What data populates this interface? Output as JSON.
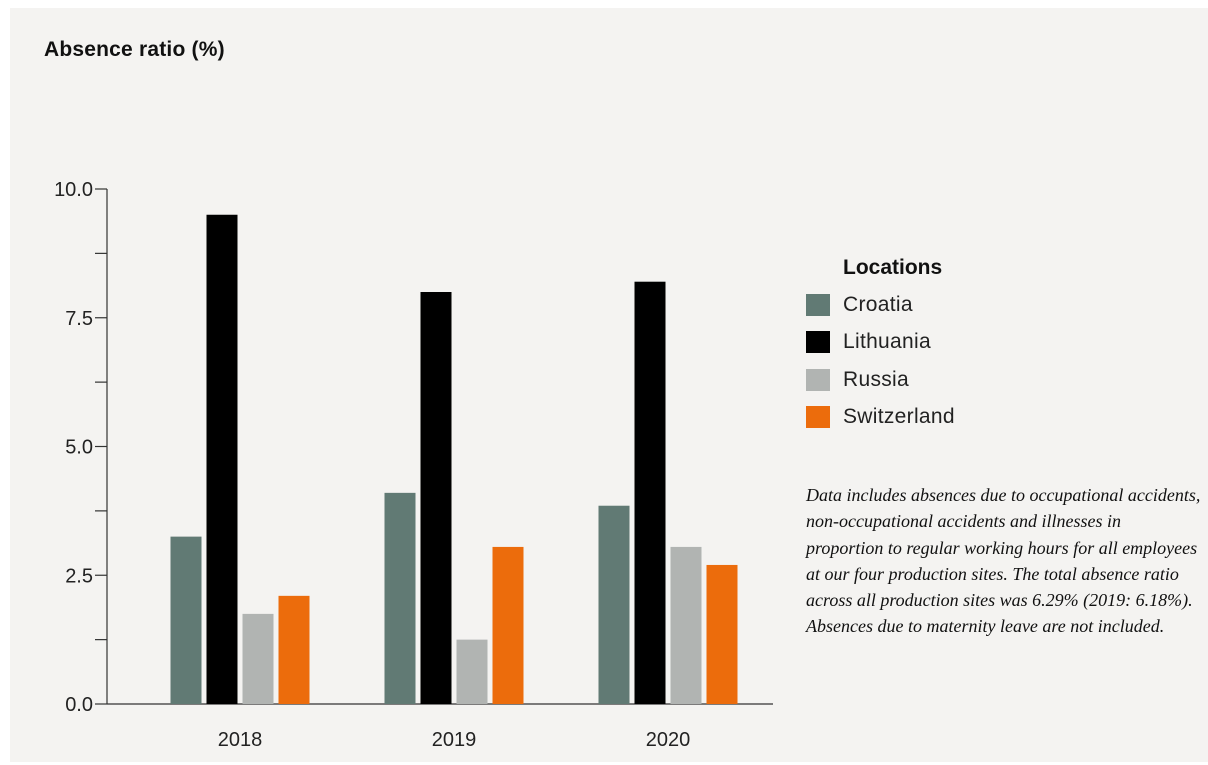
{
  "chart_data": {
    "type": "bar",
    "title": "Absence ratio (%)",
    "categories": [
      "2018",
      "2019",
      "2020"
    ],
    "series": [
      {
        "name": "Croatia",
        "color": "#617a74",
        "values": [
          3.25,
          4.1,
          3.85
        ]
      },
      {
        "name": "Lithuania",
        "color": "#000000",
        "values": [
          9.5,
          8.0,
          8.2
        ]
      },
      {
        "name": "Russia",
        "color": "#b1b4b2",
        "values": [
          1.75,
          1.25,
          3.05
        ]
      },
      {
        "name": "Switzerland",
        "color": "#ec6c0c",
        "values": [
          2.1,
          3.05,
          2.7
        ]
      }
    ],
    "yticks": [
      "0.0",
      "2.5",
      "5.0",
      "7.5",
      "10.0"
    ],
    "ylim": [
      0,
      10
    ],
    "legend": {
      "title": "Locations",
      "position": "right"
    },
    "note": "Data includes absences due to occupational accidents, non-occupational accidents and illnesses in proportion to regular working hours for all employees at our four production sites. The total absence ratio across all production sites was 6.29% (2019: 6.18%). Absences due to maternity leave are not included."
  }
}
